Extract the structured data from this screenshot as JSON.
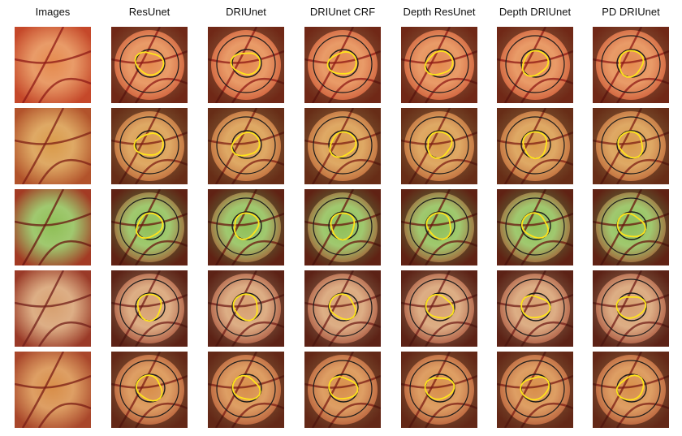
{
  "columns": [
    "Images",
    "ResUnet",
    "DRIUnet",
    "DRIUnet CRF",
    "Depth ResUnet",
    "Depth DRIUnet",
    "PD DRIUnet"
  ],
  "rows": [
    {
      "bg": "#c5482a",
      "disc": "#e58a4e",
      "vessel": "#8e1a16"
    },
    {
      "bg": "#b2532b",
      "disc": "#d99a4a",
      "vessel": "#7d1f14"
    },
    {
      "bg": "#a33b24",
      "disc": "#8fbf56",
      "vessel": "#6a1510"
    },
    {
      "bg": "#9a3a28",
      "disc": "#d7a070",
      "vessel": "#701e18"
    },
    {
      "bg": "#a9472b",
      "disc": "#d88e49",
      "vessel": "#7a1c14"
    }
  ],
  "colors": {
    "outer_ring": "#1b1b1b",
    "inner_ring": "#1b1b1b",
    "prediction": "#ffe41a"
  }
}
